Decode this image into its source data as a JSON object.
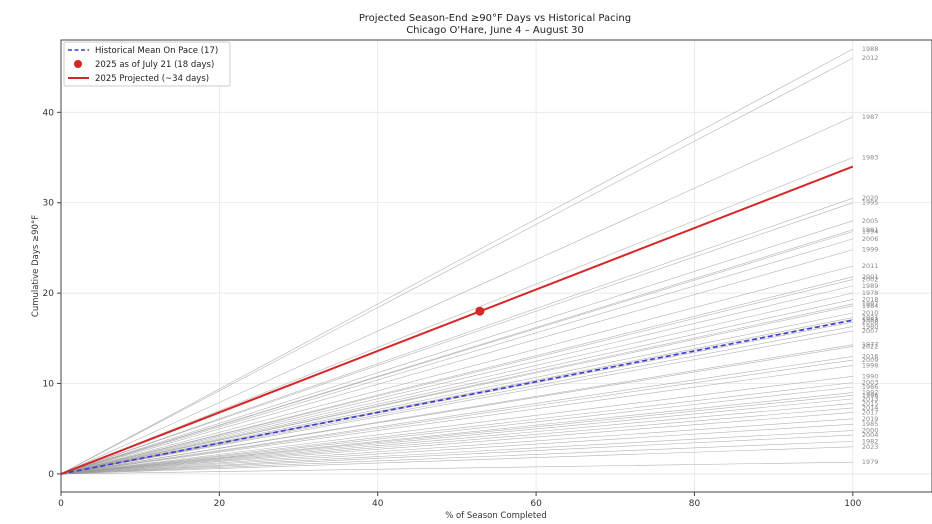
{
  "chart_data": {
    "type": "line",
    "title": "Projected Season-End ≥90°F Days vs Historical Pacing",
    "subtitle": "Chicago O'Hare, June 4 – August 30",
    "xlabel": "% of Season Completed",
    "ylabel": "Cumulative Days ≥90°F",
    "xlim": [
      0,
      110
    ],
    "ylim": [
      -2,
      48
    ],
    "xticks": [
      0,
      20,
      40,
      60,
      80,
      100
    ],
    "yticks": [
      0,
      10,
      20,
      30,
      40
    ],
    "grid": true,
    "legend_position": "top-left",
    "legend": [
      {
        "label": "Historical Mean On Pace (17)",
        "style": "dashed",
        "color": "#3b3bd6"
      },
      {
        "label": "2025 as of July 21 (18 days)",
        "style": "marker",
        "color": "#d62728"
      },
      {
        "label": "2025 Projected (~34 days)",
        "style": "solid",
        "color": "#d62728"
      }
    ],
    "historical_mean": {
      "x": [
        0,
        100
      ],
      "y": [
        0,
        17
      ]
    },
    "current_point": {
      "x": 52.9,
      "y": 18
    },
    "projection": {
      "x": [
        0,
        100
      ],
      "y": [
        0,
        34
      ]
    },
    "years": [
      {
        "year": "1988",
        "end": 47
      },
      {
        "year": "2012",
        "end": 46
      },
      {
        "year": "1987",
        "end": 39.5
      },
      {
        "year": "1983",
        "end": 35
      },
      {
        "year": "2020",
        "end": 30.5
      },
      {
        "year": "1995",
        "end": 30
      },
      {
        "year": "2005",
        "end": 28
      },
      {
        "year": "1991",
        "end": 27
      },
      {
        "year": "1994",
        "end": 26.8
      },
      {
        "year": "2006",
        "end": 26
      },
      {
        "year": "1999",
        "end": 24.8
      },
      {
        "year": "2011",
        "end": 23
      },
      {
        "year": "2001",
        "end": 21.8
      },
      {
        "year": "2002",
        "end": 21.5
      },
      {
        "year": "1989",
        "end": 20.8
      },
      {
        "year": "1978",
        "end": 20
      },
      {
        "year": "2018",
        "end": 19.3
      },
      {
        "year": "1997",
        "end": 18.8
      },
      {
        "year": "1984",
        "end": 18.6
      },
      {
        "year": "2010",
        "end": 17.8
      },
      {
        "year": "2021",
        "end": 17.3
      },
      {
        "year": "1993",
        "end": 17.1
      },
      {
        "year": "2008",
        "end": 16.8
      },
      {
        "year": "1980",
        "end": 16.3
      },
      {
        "year": "2007",
        "end": 15.8
      },
      {
        "year": "1977",
        "end": 14.3
      },
      {
        "year": "2022",
        "end": 14.1
      },
      {
        "year": "2016",
        "end": 13
      },
      {
        "year": "2009",
        "end": 12.6
      },
      {
        "year": "1998",
        "end": 12
      },
      {
        "year": "1990",
        "end": 10.8
      },
      {
        "year": "2003",
        "end": 10.1
      },
      {
        "year": "1986",
        "end": 9.6
      },
      {
        "year": "1992",
        "end": 9
      },
      {
        "year": "1996",
        "end": 8.7
      },
      {
        "year": "2013",
        "end": 8.3
      },
      {
        "year": "2015",
        "end": 7.8
      },
      {
        "year": "2014",
        "end": 7.3
      },
      {
        "year": "2017",
        "end": 6.8
      },
      {
        "year": "2019",
        "end": 6.1
      },
      {
        "year": "1985",
        "end": 5.5
      },
      {
        "year": "2000",
        "end": 4.8
      },
      {
        "year": "2004",
        "end": 4.3
      },
      {
        "year": "1982",
        "end": 3.6
      },
      {
        "year": "2023",
        "end": 3
      },
      {
        "year": "1979",
        "end": 1.3
      }
    ]
  }
}
